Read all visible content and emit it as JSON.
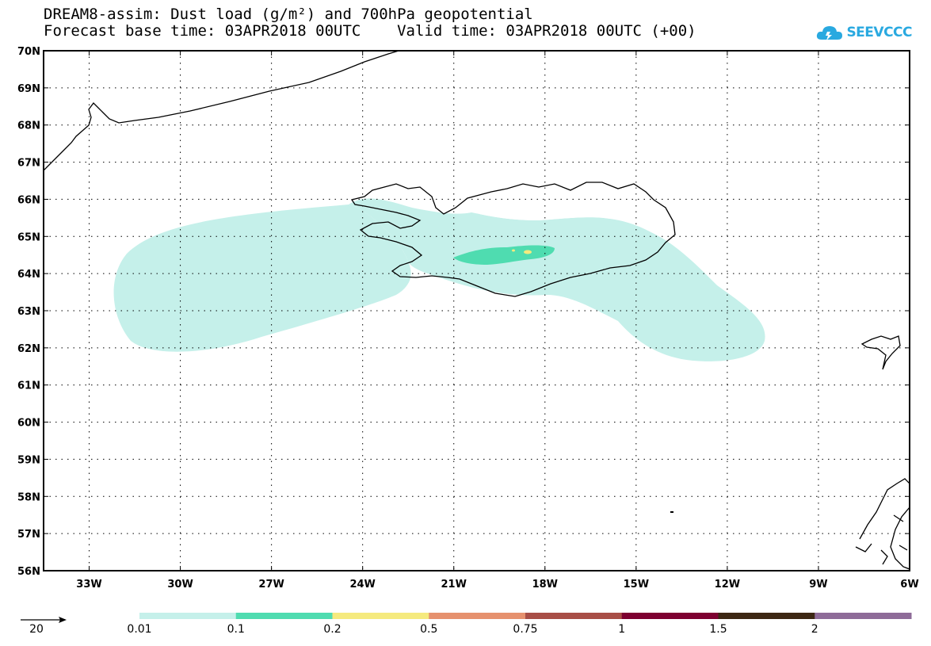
{
  "title_line1": "DREAM8-assim: Dust load (g/m²) and 700hPa geopotential",
  "title_line2": "Forecast base time: 03APR2018 00UTC    Valid time: 03APR2018 00UTC (+00)",
  "logo": {
    "text": "SEEVCCC",
    "icon": "cloud-icon",
    "color": "#29a9e0"
  },
  "map": {
    "lon_range": [
      -34.5,
      -6
    ],
    "lat_range": [
      56,
      70
    ],
    "lat_labels": [
      "70N",
      "69N",
      "68N",
      "67N",
      "66N",
      "65N",
      "64N",
      "63N",
      "62N",
      "61N",
      "60N",
      "59N",
      "58N",
      "57N",
      "56N"
    ],
    "lon_labels": [
      "33W",
      "30W",
      "27W",
      "24W",
      "21W",
      "18W",
      "15W",
      "12W",
      "9W",
      "6W"
    ],
    "grid": "dotted"
  },
  "vector_key": {
    "value": "20"
  },
  "colorbar": {
    "labels": [
      "0.01",
      "0.1",
      "0.2",
      "0.5",
      "0.75",
      "1",
      "1.5",
      "2"
    ],
    "colors": [
      "#c5f0ea",
      "#4fdcb0",
      "#f5ea7e",
      "#e6916e",
      "#a84e46",
      "#7d0030",
      "#3c2713",
      "#8e6b98"
    ]
  }
}
